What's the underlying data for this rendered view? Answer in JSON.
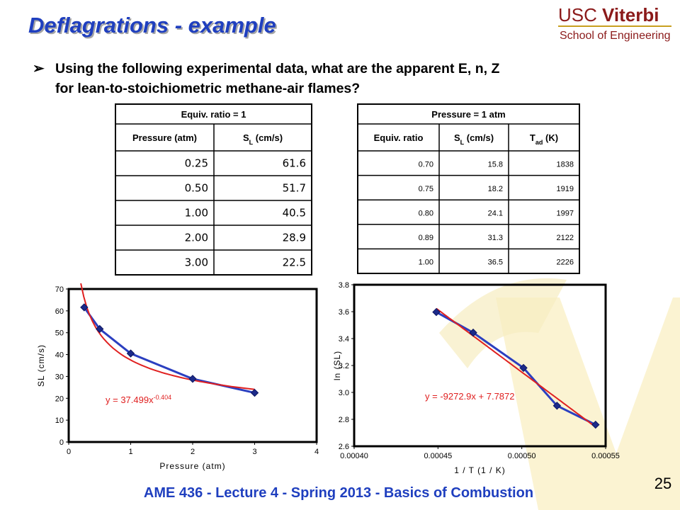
{
  "title": "Deflagrations - example",
  "logo": {
    "line1a": "USC",
    "line1b": "Viterbi",
    "line2": "School of Engineering"
  },
  "bullet": {
    "line1": "Using the following experimental data, what are the apparent E, n, Z",
    "line2": "for lean-to-stoichiometric methane-air flames?"
  },
  "tables": [
    {
      "caption": "Equiv. ratio = 1",
      "columns": [
        [
          "Pressure (atm)"
        ],
        [
          "S",
          "L",
          " (cm/s)"
        ]
      ],
      "rows": [
        [
          "0.25",
          "61.6"
        ],
        [
          "0.50",
          "51.7"
        ],
        [
          "1.00",
          "40.5"
        ],
        [
          "2.00",
          "28.9"
        ],
        [
          "3.00",
          "22.5"
        ]
      ]
    },
    {
      "caption": "Pressure = 1 atm",
      "columns": [
        [
          "Equiv. ratio"
        ],
        [
          "S",
          "L",
          " (cm/s)"
        ],
        [
          "T",
          "ad",
          " (K)"
        ]
      ],
      "rows": [
        [
          "0.70",
          "15.8",
          "1838"
        ],
        [
          "0.75",
          "18.2",
          "1919"
        ],
        [
          "0.80",
          "24.1",
          "1997"
        ],
        [
          "0.89",
          "31.3",
          "2122"
        ],
        [
          "1.00",
          "36.5",
          "2226"
        ]
      ]
    }
  ],
  "chart_data": [
    {
      "type": "line",
      "markers": "diamond",
      "xlabel": "Pressure (atm)",
      "ylabel": "SL (cm/s)",
      "x": [
        0.25,
        0.5,
        1,
        2,
        3
      ],
      "series": [
        {
          "color": "#2b3fc0",
          "marker_color": "#1c2a8a",
          "values": [
            61.6,
            51.7,
            40.5,
            28.9,
            22.5
          ]
        }
      ],
      "xlim": [
        0,
        4
      ],
      "xticks": [
        0,
        1,
        2,
        3,
        4
      ],
      "ylim": [
        0,
        70
      ],
      "yticks": [
        0,
        10,
        20,
        30,
        40,
        50,
        60,
        70
      ],
      "trendline": {
        "kind": "power",
        "color": "#e02020",
        "coefficient": 37.499,
        "exponent": -0.404,
        "label": "y = 37.499x",
        "label_exponent": "-0.404"
      }
    },
    {
      "type": "line",
      "markers": "diamond",
      "xlabel": "1 / T (1 / K)",
      "ylabel": "ln (SL)",
      "x": [
        0.000544,
        0.000521,
        0.000501,
        0.000471,
        0.000449
      ],
      "series": [
        {
          "color": "#2b3fc0",
          "marker_color": "#1c2a8a",
          "values": [
            2.76,
            2.901,
            3.182,
            3.444,
            3.597
          ]
        }
      ],
      "xlim": [
        0.0004,
        0.00055
      ],
      "xticks": [
        {
          "value": 0.0004,
          "label": "0.00040"
        },
        {
          "value": 0.00045,
          "label": "0.00045"
        },
        {
          "value": 0.0005,
          "label": "0.00050"
        },
        {
          "value": 0.00055,
          "label": "0.00055"
        }
      ],
      "ylim": [
        2.6,
        3.8
      ],
      "yticks": [
        2.6,
        2.8,
        {
          "value": 3,
          "label": "3.0"
        },
        3.2,
        3.4,
        3.6,
        3.8
      ],
      "trendline": {
        "kind": "linear",
        "color": "#e02020",
        "slope": -9272.9,
        "intercept": 7.7872,
        "label": "y = -9272.9x + 7.7872"
      }
    }
  ],
  "footer": "AME 436 - Lecture 4 - Spring 2013 - Basics of Combustion",
  "page_number": "25"
}
